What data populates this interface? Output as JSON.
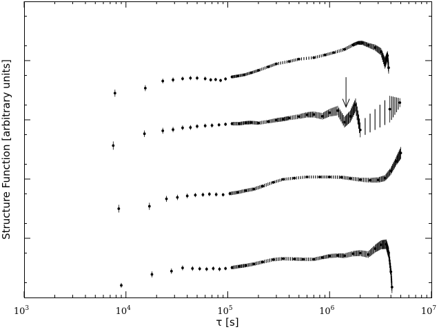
{
  "chart_data": {
    "type": "scatter",
    "title": "",
    "xlabel": "τ [s]",
    "ylabel": "Structure Function [arbitrary units]",
    "x_scale": "log",
    "xlim": [
      1000,
      10000000
    ],
    "x_ticks": [
      {
        "base": "10",
        "exp": "3",
        "value": 1000
      },
      {
        "base": "10",
        "exp": "4",
        "value": 10000
      },
      {
        "base": "10",
        "exp": "5",
        "value": 100000
      },
      {
        "base": "10",
        "exp": "6",
        "value": 1000000
      },
      {
        "base": "10",
        "exp": "7",
        "value": 10000000
      }
    ],
    "y_ticks": "unlabeled",
    "ylim": [
      0,
      1
    ],
    "grid": false,
    "legend": "none",
    "annotations": [
      {
        "type": "arrow",
        "direction": "down",
        "x": 1450000,
        "y_from": 0.744,
        "y_to": 0.643
      }
    ],
    "series": [
      {
        "points": [
          [
            7800,
            0.69
          ],
          [
            15500,
            0.707
          ],
          [
            23000,
            0.731
          ],
          [
            29000,
            0.735
          ],
          [
            36000,
            0.739
          ],
          [
            43000,
            0.741
          ],
          [
            50000,
            0.741
          ],
          [
            60000,
            0.739
          ],
          [
            68000,
            0.735
          ],
          [
            76000,
            0.736
          ],
          [
            85000,
            0.733
          ],
          [
            95000,
            0.738
          ],
          [
            110000,
            0.745
          ],
          [
            125000,
            0.748
          ],
          [
            145000,
            0.752
          ],
          [
            170000,
            0.759
          ],
          [
            200000,
            0.767
          ],
          [
            250000,
            0.779
          ],
          [
            300000,
            0.789
          ],
          [
            400000,
            0.797
          ],
          [
            500000,
            0.805
          ],
          [
            700000,
            0.81
          ],
          [
            900000,
            0.819
          ],
          [
            1100000,
            0.827
          ],
          [
            1400000,
            0.838
          ],
          [
            1700000,
            0.853
          ],
          [
            1900000,
            0.86
          ],
          [
            2100000,
            0.86
          ],
          [
            2400000,
            0.852
          ],
          [
            2800000,
            0.844
          ],
          [
            3200000,
            0.83
          ],
          [
            3500000,
            0.791
          ],
          [
            3700000,
            0.817
          ],
          [
            3800000,
            0.776
          ]
        ],
        "errors": [
          0.012,
          0.01,
          0.008,
          0.008,
          0.007,
          0.007,
          0.007,
          0.007,
          0.006,
          0.006,
          0.006,
          0.006,
          0.005,
          0.005,
          0.005,
          0.005,
          0.005,
          0.005,
          0.005,
          0.005,
          0.005,
          0.005,
          0.005,
          0.005,
          0.006,
          0.006,
          0.006,
          0.007,
          0.008,
          0.01,
          0.012,
          0.018,
          0.015,
          0.02
        ]
      },
      {
        "points": [
          [
            7500,
            0.513
          ],
          [
            15200,
            0.553
          ],
          [
            23000,
            0.563
          ],
          [
            29000,
            0.567
          ],
          [
            36000,
            0.573
          ],
          [
            43000,
            0.574
          ],
          [
            50000,
            0.578
          ],
          [
            60000,
            0.58
          ],
          [
            70000,
            0.581
          ],
          [
            82000,
            0.583
          ],
          [
            95000,
            0.585
          ],
          [
            110000,
            0.587
          ],
          [
            130000,
            0.587
          ],
          [
            150000,
            0.59
          ],
          [
            170000,
            0.591
          ],
          [
            200000,
            0.589
          ],
          [
            250000,
            0.594
          ],
          [
            300000,
            0.599
          ],
          [
            350000,
            0.602
          ],
          [
            400000,
            0.606
          ],
          [
            500000,
            0.611
          ],
          [
            600000,
            0.617
          ],
          [
            700000,
            0.618
          ],
          [
            850000,
            0.612
          ],
          [
            1000000,
            0.624
          ],
          [
            1200000,
            0.631
          ],
          [
            1400000,
            0.592
          ],
          [
            1600000,
            0.612
          ],
          [
            1800000,
            0.65
          ],
          [
            2000000,
            0.566
          ],
          [
            3900000,
            0.636
          ],
          [
            4900000,
            0.658
          ]
        ],
        "errors": [
          0.014,
          0.011,
          0.01,
          0.009,
          0.008,
          0.008,
          0.007,
          0.007,
          0.007,
          0.006,
          0.006,
          0.006,
          0.006,
          0.006,
          0.006,
          0.006,
          0.006,
          0.007,
          0.007,
          0.007,
          0.008,
          0.009,
          0.01,
          0.011,
          0.013,
          0.016,
          0.018,
          0.02,
          0.022,
          0.025,
          0.045,
          0.015
        ]
      },
      {
        "points": [
          [
            8500,
            0.3
          ],
          [
            17000,
            0.308
          ],
          [
            25000,
            0.333
          ],
          [
            32000,
            0.338
          ],
          [
            40000,
            0.343
          ],
          [
            48000,
            0.346
          ],
          [
            57000,
            0.347
          ],
          [
            66000,
            0.349
          ],
          [
            77000,
            0.348
          ],
          [
            90000,
            0.347
          ],
          [
            105000,
            0.351
          ],
          [
            125000,
            0.355
          ],
          [
            150000,
            0.361
          ],
          [
            180000,
            0.366
          ],
          [
            220000,
            0.376
          ],
          [
            280000,
            0.389
          ],
          [
            350000,
            0.399
          ],
          [
            450000,
            0.403
          ],
          [
            600000,
            0.407
          ],
          [
            800000,
            0.407
          ],
          [
            1000000,
            0.407
          ],
          [
            1300000,
            0.406
          ],
          [
            1600000,
            0.402
          ],
          [
            2000000,
            0.398
          ],
          [
            2500000,
            0.396
          ],
          [
            3000000,
            0.397
          ],
          [
            3500000,
            0.403
          ],
          [
            4000000,
            0.427
          ],
          [
            4500000,
            0.46
          ],
          [
            5000000,
            0.488
          ]
        ],
        "errors": [
          0.013,
          0.012,
          0.01,
          0.009,
          0.008,
          0.007,
          0.007,
          0.007,
          0.007,
          0.006,
          0.006,
          0.006,
          0.006,
          0.006,
          0.006,
          0.005,
          0.005,
          0.005,
          0.005,
          0.005,
          0.005,
          0.006,
          0.006,
          0.007,
          0.008,
          0.009,
          0.01,
          0.012,
          0.014,
          0.02
        ]
      },
      {
        "points": [
          [
            9000,
            0.041
          ],
          [
            18000,
            0.078
          ],
          [
            28000,
            0.089
          ],
          [
            36000,
            0.1
          ],
          [
            45000,
            0.098
          ],
          [
            53000,
            0.097
          ],
          [
            62000,
            0.096
          ],
          [
            72000,
            0.098
          ],
          [
            83000,
            0.096
          ],
          [
            95000,
            0.098
          ],
          [
            110000,
            0.101
          ],
          [
            130000,
            0.105
          ],
          [
            150000,
            0.108
          ],
          [
            180000,
            0.113
          ],
          [
            220000,
            0.12
          ],
          [
            280000,
            0.128
          ],
          [
            350000,
            0.131
          ],
          [
            450000,
            0.13
          ],
          [
            550000,
            0.129
          ],
          [
            700000,
            0.129
          ],
          [
            850000,
            0.135
          ],
          [
            1000000,
            0.14
          ],
          [
            1200000,
            0.142
          ],
          [
            1400000,
            0.141
          ],
          [
            1700000,
            0.148
          ],
          [
            2000000,
            0.15
          ],
          [
            2400000,
            0.145
          ],
          [
            2800000,
            0.165
          ],
          [
            3200000,
            0.178
          ],
          [
            3600000,
            0.18
          ],
          [
            3800000,
            0.151
          ],
          [
            4000000,
            0.087
          ],
          [
            4100000,
            0.035
          ]
        ],
        "errors": [
          0.008,
          0.01,
          0.009,
          0.008,
          0.008,
          0.007,
          0.007,
          0.007,
          0.007,
          0.006,
          0.006,
          0.006,
          0.006,
          0.006,
          0.006,
          0.006,
          0.006,
          0.006,
          0.006,
          0.006,
          0.006,
          0.007,
          0.007,
          0.008,
          0.009,
          0.01,
          0.011,
          0.013,
          0.015,
          0.016,
          0.018,
          0.02,
          0.02
        ]
      }
    ]
  }
}
